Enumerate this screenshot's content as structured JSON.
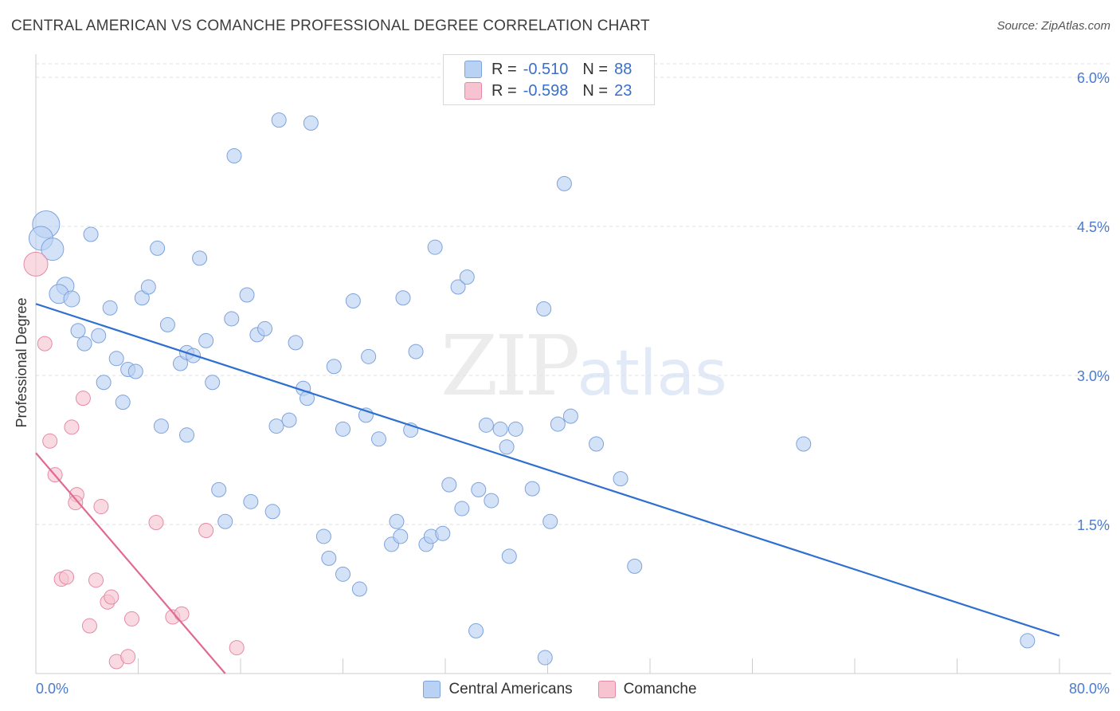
{
  "title": "CENTRAL AMERICAN VS COMANCHE PROFESSIONAL DEGREE CORRELATION CHART",
  "source": "Source: ZipAtlas.com",
  "watermark": {
    "zip": "ZIP",
    "atlas": "atlas"
  },
  "legend": {
    "rows": [
      {
        "swatch": "#b9d1f3",
        "border": "#7da3dd",
        "r_label": "R =",
        "r_value": "-0.510",
        "n_label": "N =",
        "n_value": "88"
      },
      {
        "swatch": "#f7c3d1",
        "border": "#e58aa4",
        "r_label": "R =",
        "r_value": "-0.598",
        "n_label": "N =",
        "n_value": "23"
      }
    ]
  },
  "bottom_legend": [
    {
      "label": "Central Americans",
      "color": "#b9d1f3",
      "border": "#7da3dd"
    },
    {
      "label": "Comanche",
      "color": "#f7c3d1",
      "border": "#e58aa4"
    }
  ],
  "chart_data": {
    "type": "scatter",
    "title": "CENTRAL AMERICAN VS COMANCHE PROFESSIONAL DEGREE CORRELATION CHART",
    "xlabel": "",
    "ylabel": "Professional Degree",
    "xlim": [
      0,
      80
    ],
    "ylim": [
      0,
      6.2
    ],
    "x_tick_labels": [
      "0.0%",
      "80.0%"
    ],
    "y_ticks": [
      {
        "value": 1.5,
        "label": "1.5%"
      },
      {
        "value": 3.0,
        "label": "3.0%"
      },
      {
        "value": 4.5,
        "label": "4.5%"
      },
      {
        "value": 6.0,
        "label": "6.0%"
      }
    ],
    "grid": true,
    "legend_position": "top-center",
    "series": [
      {
        "name": "Central Americans",
        "color": "#b9d1f3",
        "edge": "#7da3dd",
        "trend": {
          "color": "#2f6fd0",
          "x": [
            0,
            80
          ],
          "y": [
            3.72,
            0.38
          ]
        },
        "points": [
          {
            "x": 0.8,
            "y": 4.52,
            "s": 17
          },
          {
            "x": 0.4,
            "y": 4.38,
            "s": 15
          },
          {
            "x": 1.3,
            "y": 4.27,
            "s": 14
          },
          {
            "x": 2.3,
            "y": 3.9,
            "s": 11
          },
          {
            "x": 1.8,
            "y": 3.82,
            "s": 12
          },
          {
            "x": 2.8,
            "y": 3.77,
            "s": 10
          },
          {
            "x": 4.3,
            "y": 4.42,
            "s": 9
          },
          {
            "x": 3.3,
            "y": 3.45,
            "s": 9
          },
          {
            "x": 4.9,
            "y": 3.4,
            "s": 9
          },
          {
            "x": 3.8,
            "y": 3.32,
            "s": 9
          },
          {
            "x": 5.8,
            "y": 3.68,
            "s": 9
          },
          {
            "x": 8.3,
            "y": 3.78,
            "s": 9
          },
          {
            "x": 8.8,
            "y": 3.89,
            "s": 9
          },
          {
            "x": 9.5,
            "y": 4.28,
            "s": 9
          },
          {
            "x": 12.8,
            "y": 4.18,
            "s": 9
          },
          {
            "x": 6.3,
            "y": 3.17,
            "s": 9
          },
          {
            "x": 7.2,
            "y": 3.06,
            "s": 9
          },
          {
            "x": 7.8,
            "y": 3.04,
            "s": 9
          },
          {
            "x": 5.3,
            "y": 2.93,
            "s": 9
          },
          {
            "x": 6.8,
            "y": 2.73,
            "s": 9
          },
          {
            "x": 10.3,
            "y": 3.51,
            "s": 9
          },
          {
            "x": 11.3,
            "y": 3.12,
            "s": 9
          },
          {
            "x": 11.8,
            "y": 3.23,
            "s": 9
          },
          {
            "x": 12.3,
            "y": 3.2,
            "s": 9
          },
          {
            "x": 13.3,
            "y": 3.35,
            "s": 9
          },
          {
            "x": 13.8,
            "y": 2.93,
            "s": 9
          },
          {
            "x": 9.8,
            "y": 2.49,
            "s": 9
          },
          {
            "x": 11.8,
            "y": 2.4,
            "s": 9
          },
          {
            "x": 15.5,
            "y": 5.21,
            "s": 9
          },
          {
            "x": 19.0,
            "y": 5.57,
            "s": 9
          },
          {
            "x": 21.5,
            "y": 5.54,
            "s": 9
          },
          {
            "x": 15.3,
            "y": 3.57,
            "s": 9
          },
          {
            "x": 16.5,
            "y": 3.81,
            "s": 9
          },
          {
            "x": 17.3,
            "y": 3.41,
            "s": 9
          },
          {
            "x": 17.9,
            "y": 3.47,
            "s": 9
          },
          {
            "x": 20.3,
            "y": 3.33,
            "s": 9
          },
          {
            "x": 20.9,
            "y": 2.87,
            "s": 9
          },
          {
            "x": 21.2,
            "y": 2.77,
            "s": 9
          },
          {
            "x": 23.3,
            "y": 3.09,
            "s": 9
          },
          {
            "x": 24.8,
            "y": 3.75,
            "s": 9
          },
          {
            "x": 26.0,
            "y": 3.19,
            "s": 9
          },
          {
            "x": 28.7,
            "y": 3.78,
            "s": 9
          },
          {
            "x": 29.7,
            "y": 3.24,
            "s": 9
          },
          {
            "x": 31.2,
            "y": 4.29,
            "s": 9
          },
          {
            "x": 33.0,
            "y": 3.89,
            "s": 9
          },
          {
            "x": 33.7,
            "y": 3.99,
            "s": 9
          },
          {
            "x": 41.3,
            "y": 4.93,
            "s": 9
          },
          {
            "x": 39.7,
            "y": 3.67,
            "s": 9
          },
          {
            "x": 18.8,
            "y": 2.49,
            "s": 9
          },
          {
            "x": 19.8,
            "y": 2.55,
            "s": 9
          },
          {
            "x": 24.0,
            "y": 2.46,
            "s": 9
          },
          {
            "x": 25.8,
            "y": 2.6,
            "s": 9
          },
          {
            "x": 26.8,
            "y": 2.36,
            "s": 9
          },
          {
            "x": 29.3,
            "y": 2.45,
            "s": 9
          },
          {
            "x": 35.2,
            "y": 2.5,
            "s": 9
          },
          {
            "x": 36.3,
            "y": 2.46,
            "s": 9
          },
          {
            "x": 36.8,
            "y": 2.28,
            "s": 9
          },
          {
            "x": 37.5,
            "y": 2.46,
            "s": 9
          },
          {
            "x": 40.8,
            "y": 2.51,
            "s": 9
          },
          {
            "x": 41.8,
            "y": 2.59,
            "s": 9
          },
          {
            "x": 43.8,
            "y": 2.31,
            "s": 9
          },
          {
            "x": 60.0,
            "y": 2.31,
            "s": 9
          },
          {
            "x": 14.3,
            "y": 1.85,
            "s": 9
          },
          {
            "x": 14.8,
            "y": 1.53,
            "s": 9
          },
          {
            "x": 16.8,
            "y": 1.73,
            "s": 9
          },
          {
            "x": 18.5,
            "y": 1.63,
            "s": 9
          },
          {
            "x": 22.5,
            "y": 1.38,
            "s": 9
          },
          {
            "x": 22.9,
            "y": 1.16,
            "s": 9
          },
          {
            "x": 24.0,
            "y": 1.0,
            "s": 9
          },
          {
            "x": 25.3,
            "y": 0.85,
            "s": 9
          },
          {
            "x": 27.8,
            "y": 1.3,
            "s": 9
          },
          {
            "x": 28.2,
            "y": 1.53,
            "s": 9
          },
          {
            "x": 28.5,
            "y": 1.38,
            "s": 9
          },
          {
            "x": 30.5,
            "y": 1.3,
            "s": 9
          },
          {
            "x": 30.9,
            "y": 1.38,
            "s": 9
          },
          {
            "x": 31.8,
            "y": 1.41,
            "s": 9
          },
          {
            "x": 32.3,
            "y": 1.9,
            "s": 9
          },
          {
            "x": 33.3,
            "y": 1.66,
            "s": 9
          },
          {
            "x": 34.6,
            "y": 1.85,
            "s": 9
          },
          {
            "x": 35.6,
            "y": 1.74,
            "s": 9
          },
          {
            "x": 37.0,
            "y": 1.18,
            "s": 9
          },
          {
            "x": 38.8,
            "y": 1.86,
            "s": 9
          },
          {
            "x": 40.2,
            "y": 1.53,
            "s": 9
          },
          {
            "x": 45.7,
            "y": 1.96,
            "s": 9
          },
          {
            "x": 46.8,
            "y": 1.08,
            "s": 9
          },
          {
            "x": 34.4,
            "y": 0.43,
            "s": 9
          },
          {
            "x": 39.8,
            "y": 0.16,
            "s": 9
          },
          {
            "x": 77.5,
            "y": 0.33,
            "s": 9
          }
        ]
      },
      {
        "name": "Comanche",
        "color": "#f7c3d1",
        "edge": "#e58aa4",
        "trend": {
          "color": "#e06a93",
          "x": [
            0,
            14.8
          ],
          "y": [
            2.22,
            0.0
          ]
        },
        "points": [
          {
            "x": 0.0,
            "y": 4.12,
            "s": 15
          },
          {
            "x": 0.7,
            "y": 3.32,
            "s": 9
          },
          {
            "x": 3.7,
            "y": 2.77,
            "s": 9
          },
          {
            "x": 1.1,
            "y": 2.34,
            "s": 9
          },
          {
            "x": 2.8,
            "y": 2.48,
            "s": 9
          },
          {
            "x": 1.5,
            "y": 2.0,
            "s": 9
          },
          {
            "x": 3.2,
            "y": 1.8,
            "s": 9
          },
          {
            "x": 3.1,
            "y": 1.72,
            "s": 9
          },
          {
            "x": 5.1,
            "y": 1.68,
            "s": 9
          },
          {
            "x": 9.4,
            "y": 1.52,
            "s": 9
          },
          {
            "x": 13.3,
            "y": 1.44,
            "s": 9
          },
          {
            "x": 2.0,
            "y": 0.95,
            "s": 9
          },
          {
            "x": 2.4,
            "y": 0.97,
            "s": 9
          },
          {
            "x": 4.7,
            "y": 0.94,
            "s": 9
          },
          {
            "x": 5.6,
            "y": 0.72,
            "s": 9
          },
          {
            "x": 5.9,
            "y": 0.77,
            "s": 9
          },
          {
            "x": 4.2,
            "y": 0.48,
            "s": 9
          },
          {
            "x": 7.5,
            "y": 0.55,
            "s": 9
          },
          {
            "x": 10.7,
            "y": 0.57,
            "s": 9
          },
          {
            "x": 11.4,
            "y": 0.6,
            "s": 9
          },
          {
            "x": 15.7,
            "y": 0.26,
            "s": 9
          },
          {
            "x": 6.3,
            "y": 0.12,
            "s": 9
          },
          {
            "x": 7.2,
            "y": 0.17,
            "s": 9
          }
        ]
      }
    ]
  }
}
